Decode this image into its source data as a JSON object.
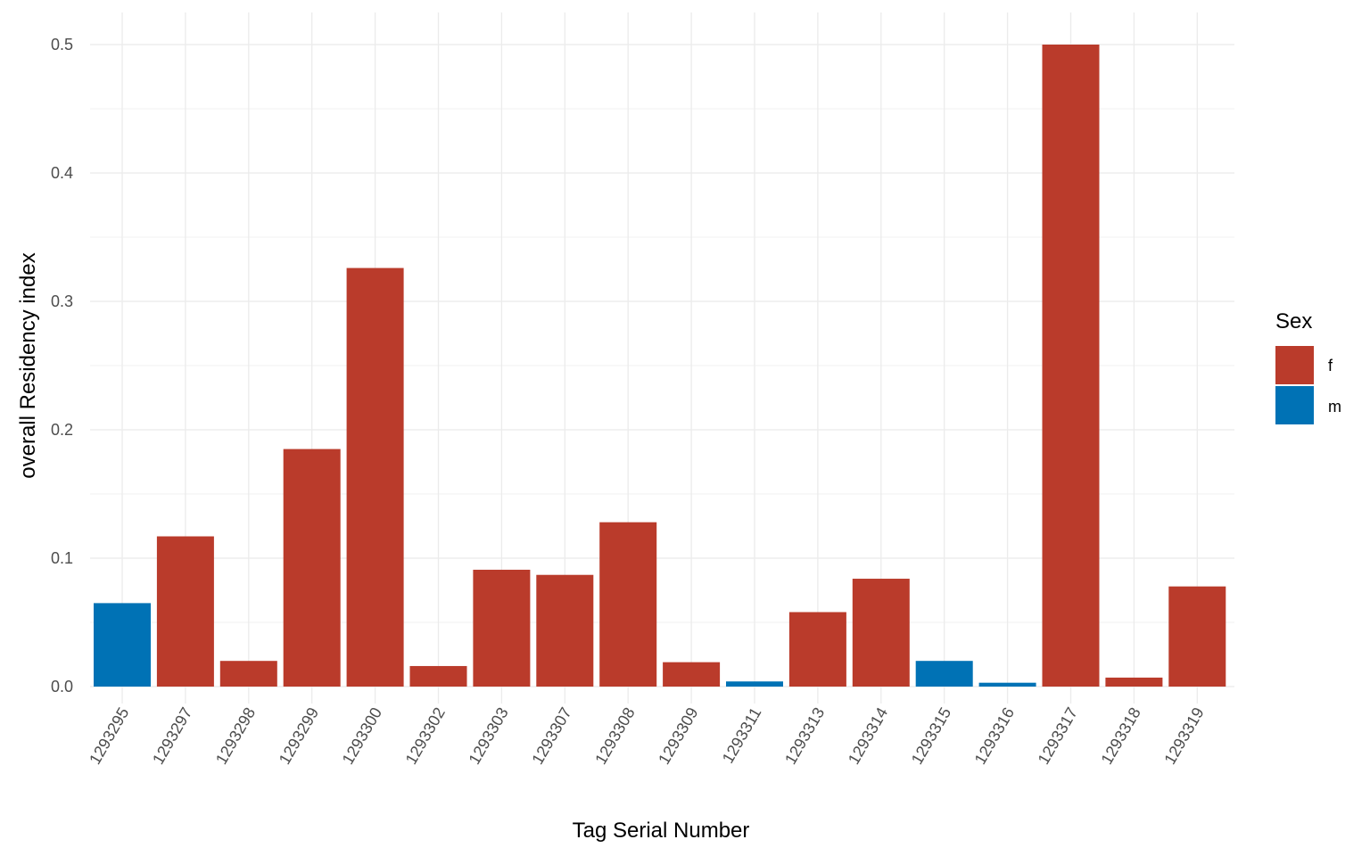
{
  "chart_data": {
    "type": "bar",
    "xlabel": "Tag Serial Number",
    "ylabel": "overall Residency index",
    "ylim": [
      0,
      0.5
    ],
    "yticks": [
      0.0,
      0.1,
      0.2,
      0.3,
      0.4,
      0.5
    ],
    "ytick_labels": [
      "0.0",
      "0.1",
      "0.2",
      "0.3",
      "0.4",
      "0.5"
    ],
    "grid": true,
    "categories": [
      "1293295",
      "1293297",
      "1293298",
      "1293299",
      "1293300",
      "1293302",
      "1293303",
      "1293307",
      "1293308",
      "1293309",
      "1293311",
      "1293313",
      "1293314",
      "1293315",
      "1293316",
      "1293317",
      "1293318",
      "1293319"
    ],
    "values": [
      0.065,
      0.117,
      0.02,
      0.185,
      0.326,
      0.016,
      0.091,
      0.087,
      0.128,
      0.019,
      0.004,
      0.058,
      0.084,
      0.02,
      0.003,
      0.5,
      0.007,
      0.078
    ],
    "groups": [
      "m",
      "f",
      "f",
      "f",
      "f",
      "f",
      "f",
      "f",
      "f",
      "f",
      "m",
      "f",
      "f",
      "m",
      "m",
      "f",
      "f",
      "f"
    ],
    "legend": {
      "title": "Sex",
      "position": "right",
      "entries": [
        {
          "label": "f",
          "color": "#BA3B2B"
        },
        {
          "label": "m",
          "color": "#0072B5"
        }
      ]
    }
  }
}
